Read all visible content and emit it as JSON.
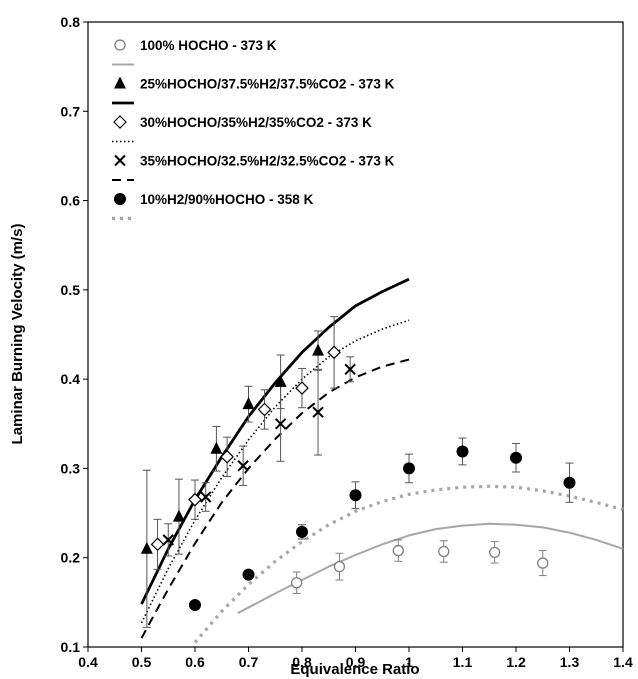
{
  "chart_data": {
    "type": "scatter",
    "xlabel": "Equivalence Ratio",
    "ylabel": "Laminar Burning Velocity  (m/s)",
    "xlim": [
      0.4,
      1.4
    ],
    "ylim": [
      0.1,
      0.8
    ],
    "xticks": [
      "0.4",
      "0.5",
      "0.6",
      "0.7",
      "0.8",
      "0.9",
      "1",
      "1.1",
      "1.2",
      "1.3",
      "1.4"
    ],
    "yticks": [
      "0.1",
      "0.2",
      "0.3",
      "0.4",
      "0.5",
      "0.6",
      "0.7",
      "0.8"
    ],
    "grid": false,
    "legend_position": "top-left",
    "series": [
      {
        "name": "100% HOCHO - 373 K",
        "kind": "points",
        "marker": "open-circle",
        "color": "#808080",
        "x": [
          0.79,
          0.87,
          0.98,
          1.065,
          1.16,
          1.25
        ],
        "y": [
          0.172,
          0.19,
          0.208,
          0.207,
          0.206,
          0.194
        ],
        "err": [
          0.012,
          0.015,
          0.012,
          0.012,
          0.012,
          0.014
        ]
      },
      {
        "name": "",
        "kind": "line",
        "style": "solid",
        "color": "#a6a6a6",
        "width": 2,
        "x": [
          0.68,
          0.75,
          0.8,
          0.85,
          0.9,
          0.95,
          1.0,
          1.05,
          1.1,
          1.15,
          1.2,
          1.25,
          1.3,
          1.35,
          1.4
        ],
        "y": [
          0.138,
          0.16,
          0.175,
          0.19,
          0.203,
          0.215,
          0.225,
          0.232,
          0.236,
          0.238,
          0.237,
          0.234,
          0.228,
          0.22,
          0.21
        ]
      },
      {
        "name": "25%HOCHO/37.5%H2/37.5%CO2 - 373 K",
        "kind": "points",
        "marker": "filled-triangle",
        "color": "#000000",
        "x": [
          0.51,
          0.57,
          0.64,
          0.7,
          0.76,
          0.83
        ],
        "y": [
          0.21,
          0.246,
          0.322,
          0.372,
          0.397,
          0.432
        ],
        "err": [
          0.088,
          0.042,
          0.025,
          0.02,
          0.03,
          0.022
        ]
      },
      {
        "name": "",
        "kind": "line",
        "style": "solid",
        "color": "#000000",
        "width": 2.8,
        "x": [
          0.5,
          0.55,
          0.6,
          0.65,
          0.7,
          0.75,
          0.8,
          0.85,
          0.9,
          0.95,
          1.0
        ],
        "y": [
          0.148,
          0.21,
          0.265,
          0.313,
          0.358,
          0.396,
          0.43,
          0.458,
          0.482,
          0.498,
          0.512
        ]
      },
      {
        "name": "30%HOCHO/35%H2/35%CO2 - 373 K",
        "kind": "points",
        "marker": "open-diamond",
        "color": "#000000",
        "x": [
          0.53,
          0.6,
          0.66,
          0.73,
          0.8,
          0.86
        ],
        "y": [
          0.215,
          0.265,
          0.313,
          0.366,
          0.39,
          0.43
        ],
        "err": [
          0.028,
          0.022,
          0.022,
          0.022,
          0.022,
          0.04
        ]
      },
      {
        "name": "",
        "kind": "line",
        "style": "dotted",
        "color": "#000000",
        "width": 1.6,
        "x": [
          0.5,
          0.55,
          0.6,
          0.65,
          0.7,
          0.75,
          0.8,
          0.85,
          0.9,
          0.95,
          1.0
        ],
        "y": [
          0.127,
          0.188,
          0.242,
          0.29,
          0.332,
          0.369,
          0.4,
          0.425,
          0.443,
          0.456,
          0.466
        ]
      },
      {
        "name": "35%HOCHO/32.5%H2/32.5%CO2  - 373 K",
        "kind": "points",
        "marker": "x",
        "color": "#000000",
        "x": [
          0.55,
          0.62,
          0.69,
          0.76,
          0.83,
          0.89
        ],
        "y": [
          0.22,
          0.268,
          0.303,
          0.35,
          0.363,
          0.411
        ],
        "err": [
          0.018,
          0.016,
          0.022,
          0.042,
          0.048,
          0.014
        ]
      },
      {
        "name": "",
        "kind": "line",
        "style": "dashed",
        "color": "#000000",
        "width": 2,
        "x": [
          0.5,
          0.55,
          0.6,
          0.65,
          0.7,
          0.75,
          0.8,
          0.85,
          0.9,
          0.95,
          1.0
        ],
        "y": [
          0.11,
          0.165,
          0.216,
          0.262,
          0.3,
          0.333,
          0.362,
          0.385,
          0.402,
          0.414,
          0.422
        ]
      },
      {
        "name": "10%H2/90%HOCHO - 358 K",
        "kind": "points",
        "marker": "filled-circle",
        "color": "#000000",
        "x": [
          0.6,
          0.7,
          0.8,
          0.9,
          1.0,
          1.1,
          1.2,
          1.3
        ],
        "y": [
          0.147,
          0.181,
          0.229,
          0.27,
          0.3,
          0.319,
          0.312,
          0.284
        ],
        "err": [
          0,
          0,
          0.008,
          0.015,
          0.016,
          0.015,
          0.016,
          0.022
        ]
      },
      {
        "name": "",
        "kind": "line",
        "style": "dotted",
        "color": "#a6a6a6",
        "width": 3.2,
        "x": [
          0.6,
          0.65,
          0.7,
          0.75,
          0.8,
          0.85,
          0.9,
          0.95,
          1.0,
          1.05,
          1.1,
          1.15,
          1.2,
          1.25,
          1.3,
          1.35,
          1.4
        ],
        "y": [
          0.105,
          0.14,
          0.17,
          0.196,
          0.218,
          0.237,
          0.252,
          0.263,
          0.271,
          0.276,
          0.279,
          0.28,
          0.279,
          0.275,
          0.269,
          0.262,
          0.254
        ]
      }
    ]
  }
}
